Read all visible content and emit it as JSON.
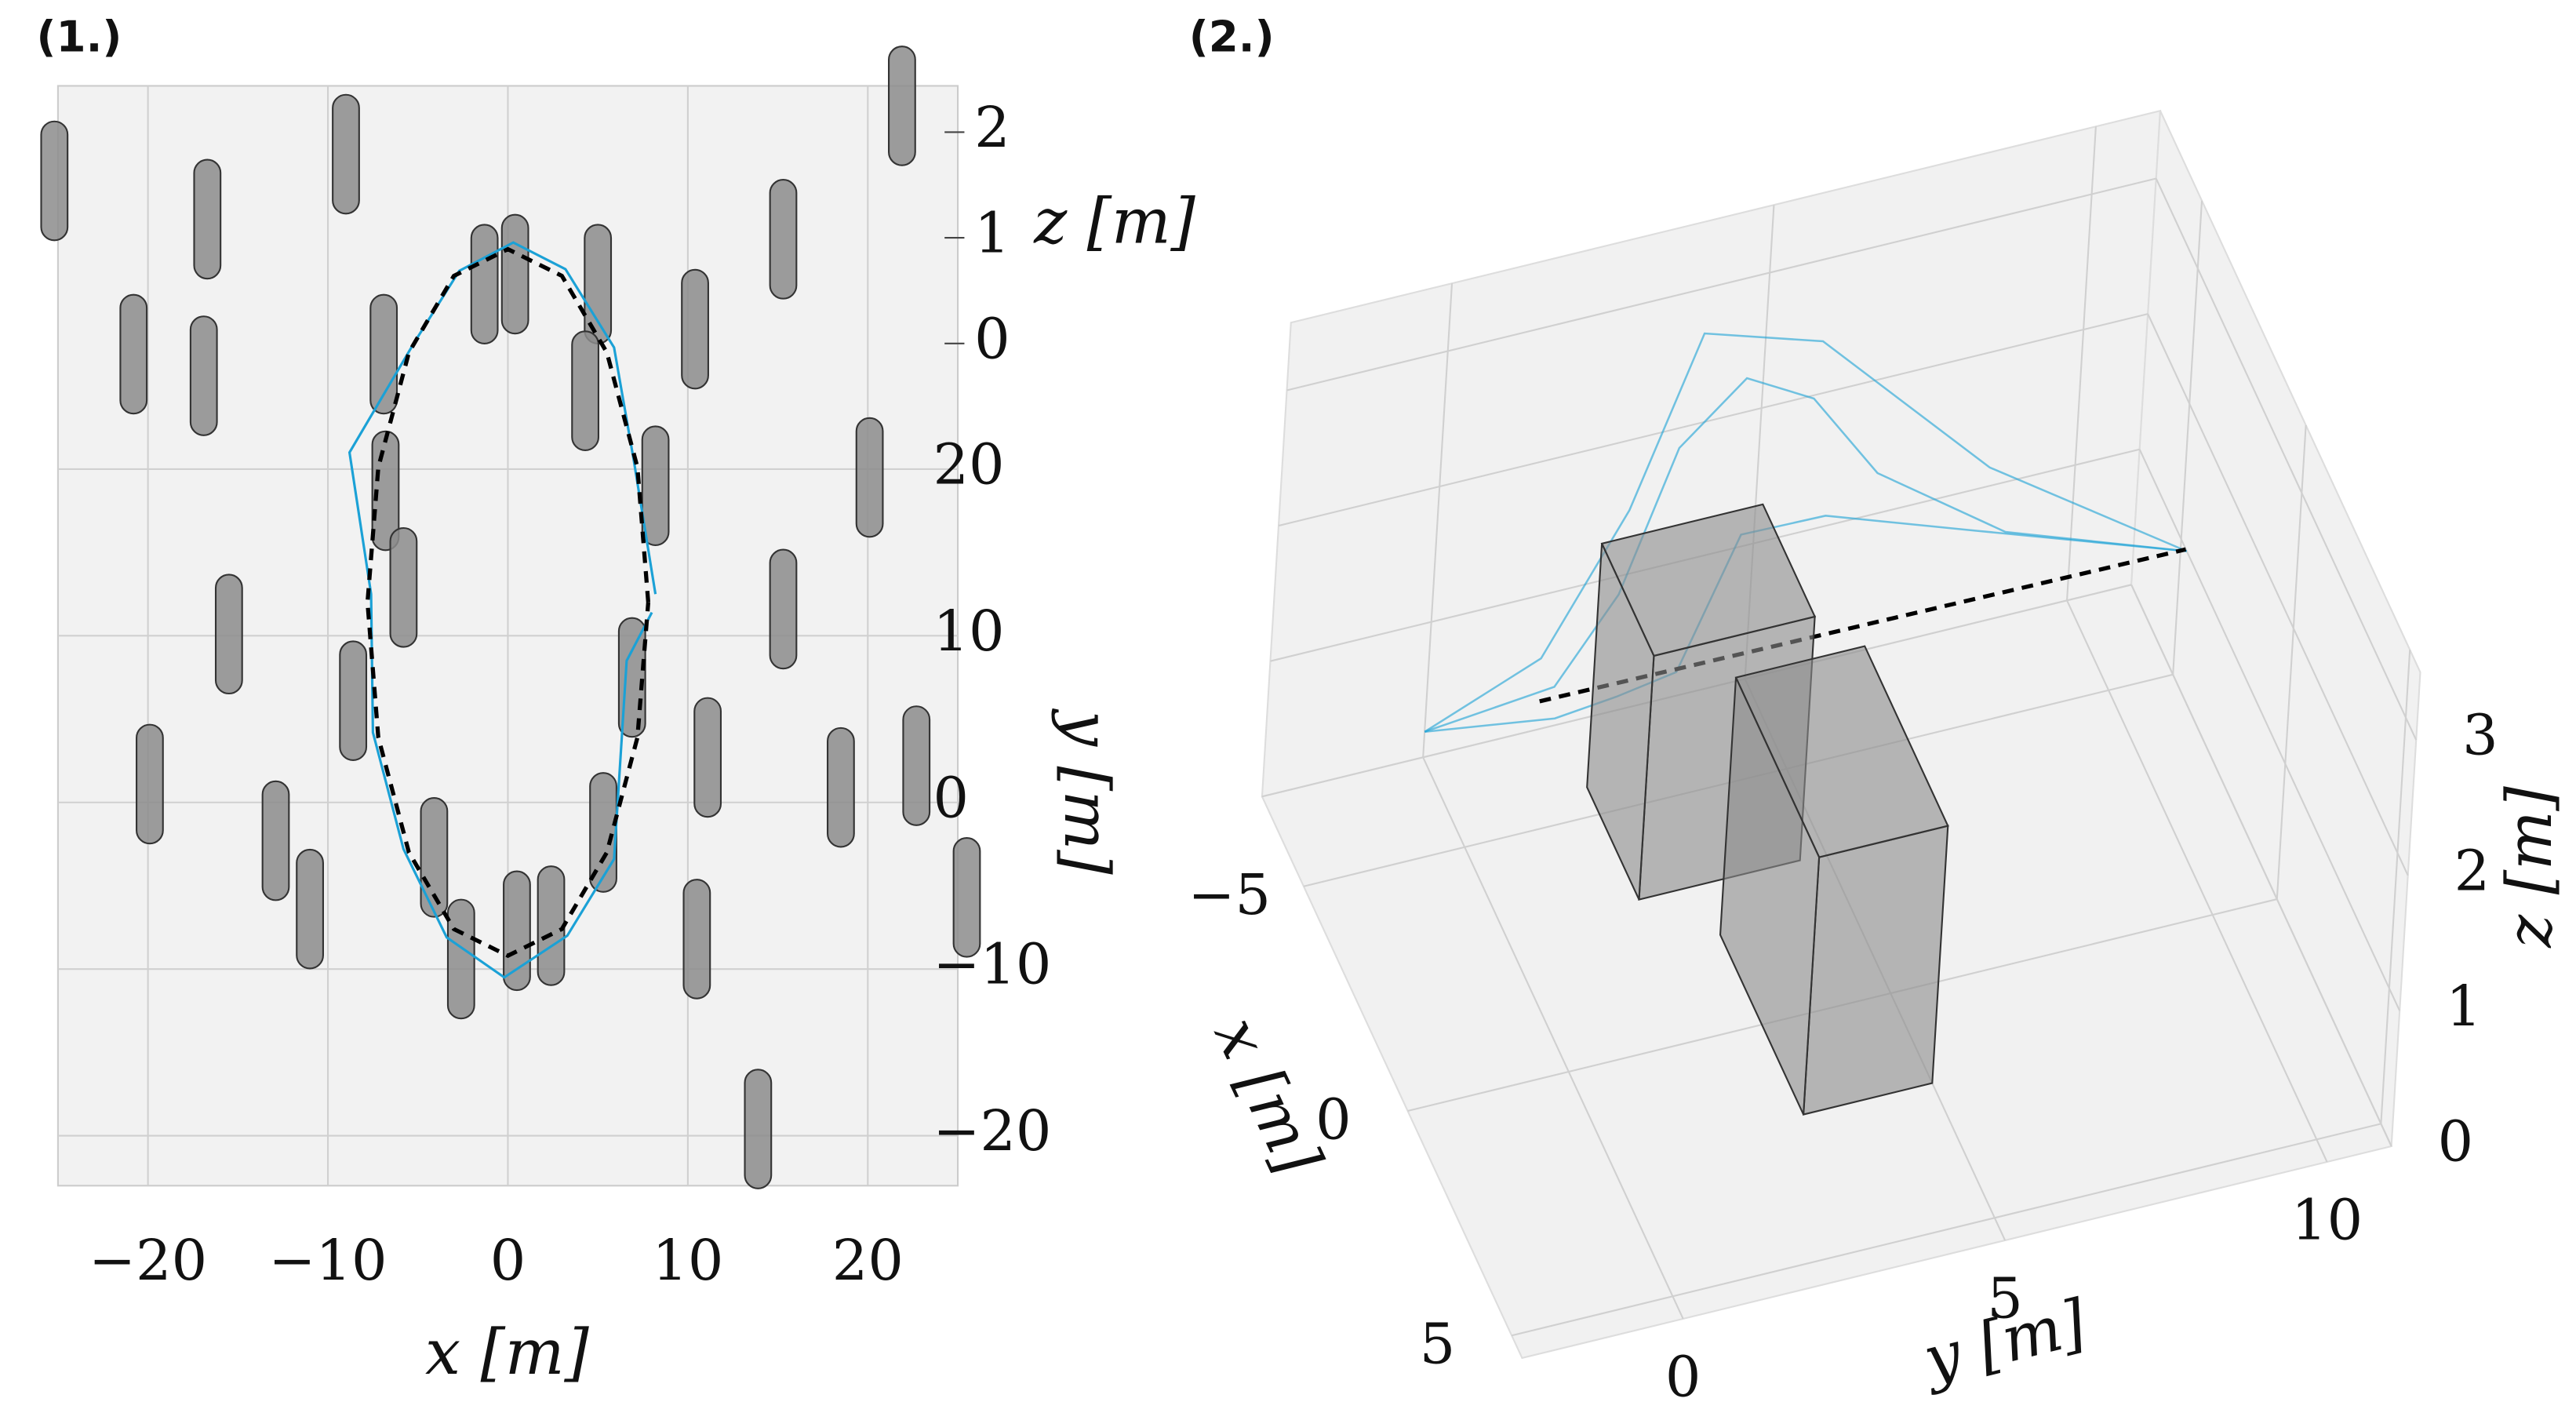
{
  "chart_data": [
    {
      "type": "line",
      "panel_label": "(1.)",
      "xlabel": "x [m]",
      "ylabel": "y [m]",
      "zlabel": "z [m]",
      "xlim": [
        -25,
        25
      ],
      "ylim": [
        -23,
        43
      ],
      "xticks": [
        {
          "value": -20,
          "label": "−20"
        },
        {
          "value": -10,
          "label": "−10"
        },
        0,
        10,
        20
      ],
      "yticks": [
        {
          "value": -20,
          "label": "−20"
        },
        {
          "value": -10,
          "label": "−10"
        },
        0,
        10,
        20
      ],
      "zlim": [
        0,
        2.5
      ],
      "zticks": [
        0,
        1,
        2
      ],
      "grid": true,
      "obstacles": {
        "color": "#8c8c8c",
        "x": [
          -25.2,
          -16.7,
          -9.0,
          21.9,
          -20.8,
          -16.9,
          -6.9,
          -1.3,
          0.4,
          5.0,
          10.4,
          15.3,
          4.3,
          8.2,
          20.1,
          -6.8,
          -5.8,
          -15.5,
          -8.6,
          6.9,
          15.3,
          -19.9,
          -12.9,
          -11.0,
          -4.1,
          5.3,
          11.1,
          18.5,
          22.7,
          25.5,
          -2.6,
          0.5,
          2.4,
          10.5,
          13.9
        ],
        "y": [
          37.3,
          35.0,
          38.9,
          41.8,
          26.9,
          25.6,
          26.9,
          31.1,
          31.7,
          31.1,
          28.4,
          33.8,
          24.7,
          19.0,
          19.5,
          18.7,
          12.9,
          10.1,
          6.1,
          7.5,
          11.6,
          1.1,
          -2.3,
          -6.4,
          -3.3,
          -1.8,
          2.7,
          0.9,
          2.2,
          -5.7,
          -9.4,
          -7.7,
          -7.4,
          -8.2,
          -19.6
        ]
      },
      "series": [
        {
          "color": "#1ba1d6",
          "x": [
            8.2,
            7.0,
            5.9,
            3.2,
            0.3,
            -2.7,
            -5.2,
            -8.8,
            -7.6,
            -7.5,
            -5.8,
            -3.4,
            -0.2,
            3.3,
            5.9,
            6.6,
            8.0
          ],
          "y": [
            12.5,
            20.5,
            27.3,
            32.0,
            33.6,
            31.9,
            27.6,
            21.0,
            12.5,
            4.2,
            -2.8,
            -8.1,
            -10.5,
            -8.0,
            -3.4,
            8.5,
            11.4
          ]
        },
        {
          "color": "#000000",
          "dashed": true,
          "x": [
            7.8,
            7.2,
            5.5,
            3.0,
            0,
            -3.0,
            -5.5,
            -7.2,
            -7.8,
            -7.2,
            -5.5,
            -3.0,
            0,
            3.0,
            5.5,
            7.2,
            7.8
          ],
          "y": [
            12.0,
            20.1,
            27.0,
            31.6,
            33.2,
            31.6,
            27.0,
            20.1,
            12.0,
            3.9,
            -3.0,
            -7.6,
            -9.2,
            -7.6,
            -3.0,
            3.9,
            12.0
          ]
        }
      ]
    },
    {
      "type": "line3d",
      "panel_label": "(2.)",
      "xlabel": "x [m]",
      "ylabel": "y [m]",
      "zlabel": "z [m]",
      "xlim": [
        -7,
        5.5
      ],
      "ylim": [
        -2.5,
        11
      ],
      "zlim": [
        0,
        3.5
      ],
      "xticks": [
        {
          "value": -5,
          "label": "−5"
        },
        0,
        5
      ],
      "yticks": [
        0,
        5,
        10
      ],
      "zticks": [
        0,
        1,
        2,
        3
      ],
      "grid": true,
      "boxes": [
        {
          "color": "#8c8c8c",
          "x": [
            -4,
            -1.5
          ],
          "y": [
            1.5,
            4
          ],
          "z": [
            0.6,
            2.4
          ]
        },
        {
          "color": "#8c8c8c",
          "x": [
            -2,
            2
          ],
          "y": [
            3,
            5
          ],
          "z": [
            0,
            1.9
          ]
        }
      ],
      "series": [
        {
          "color": "#1ba1d6",
          "x": [
            -4.3,
            -4.3,
            -4.5,
            -5,
            -5,
            -4.8,
            -4.6,
            -4.4,
            -4.2
          ],
          "y": [
            -1,
            1,
            2,
            3,
            4,
            5,
            6,
            8,
            10.8
          ],
          "z": [
            1.2,
            1.3,
            1.8,
            2.6,
            3.0,
            2.8,
            2.2,
            1.6,
            1.2
          ]
        },
        {
          "color": "#1ba1d6",
          "x": [
            -4.3,
            -4.2,
            -3.8,
            -3.2,
            -3.5,
            -4.0,
            -4.3,
            -4.2
          ],
          "y": [
            -1,
            1,
            1.8,
            2.5,
            3.5,
            5,
            7.5,
            10.8
          ],
          "z": [
            1.2,
            1.1,
            1.3,
            1.6,
            2.4,
            2.2,
            1.7,
            1.2
          ]
        },
        {
          "color": "#1ba1d6",
          "x": [
            -4.3,
            -4.4,
            -4.8,
            -5.3,
            -5.1,
            -4.7,
            -4.2
          ],
          "y": [
            -1,
            0.8,
            2.2,
            3.4,
            5.2,
            7.8,
            10.8
          ],
          "z": [
            1.2,
            1.5,
            2.3,
            3.3,
            3.1,
            2.0,
            1.2
          ]
        },
        {
          "color": "#000000",
          "dashed": true,
          "x": [
            -4.35,
            -4.24
          ],
          "y": [
            0.8,
            10.8
          ],
          "z": [
            1.2,
            1.2
          ]
        }
      ]
    }
  ]
}
